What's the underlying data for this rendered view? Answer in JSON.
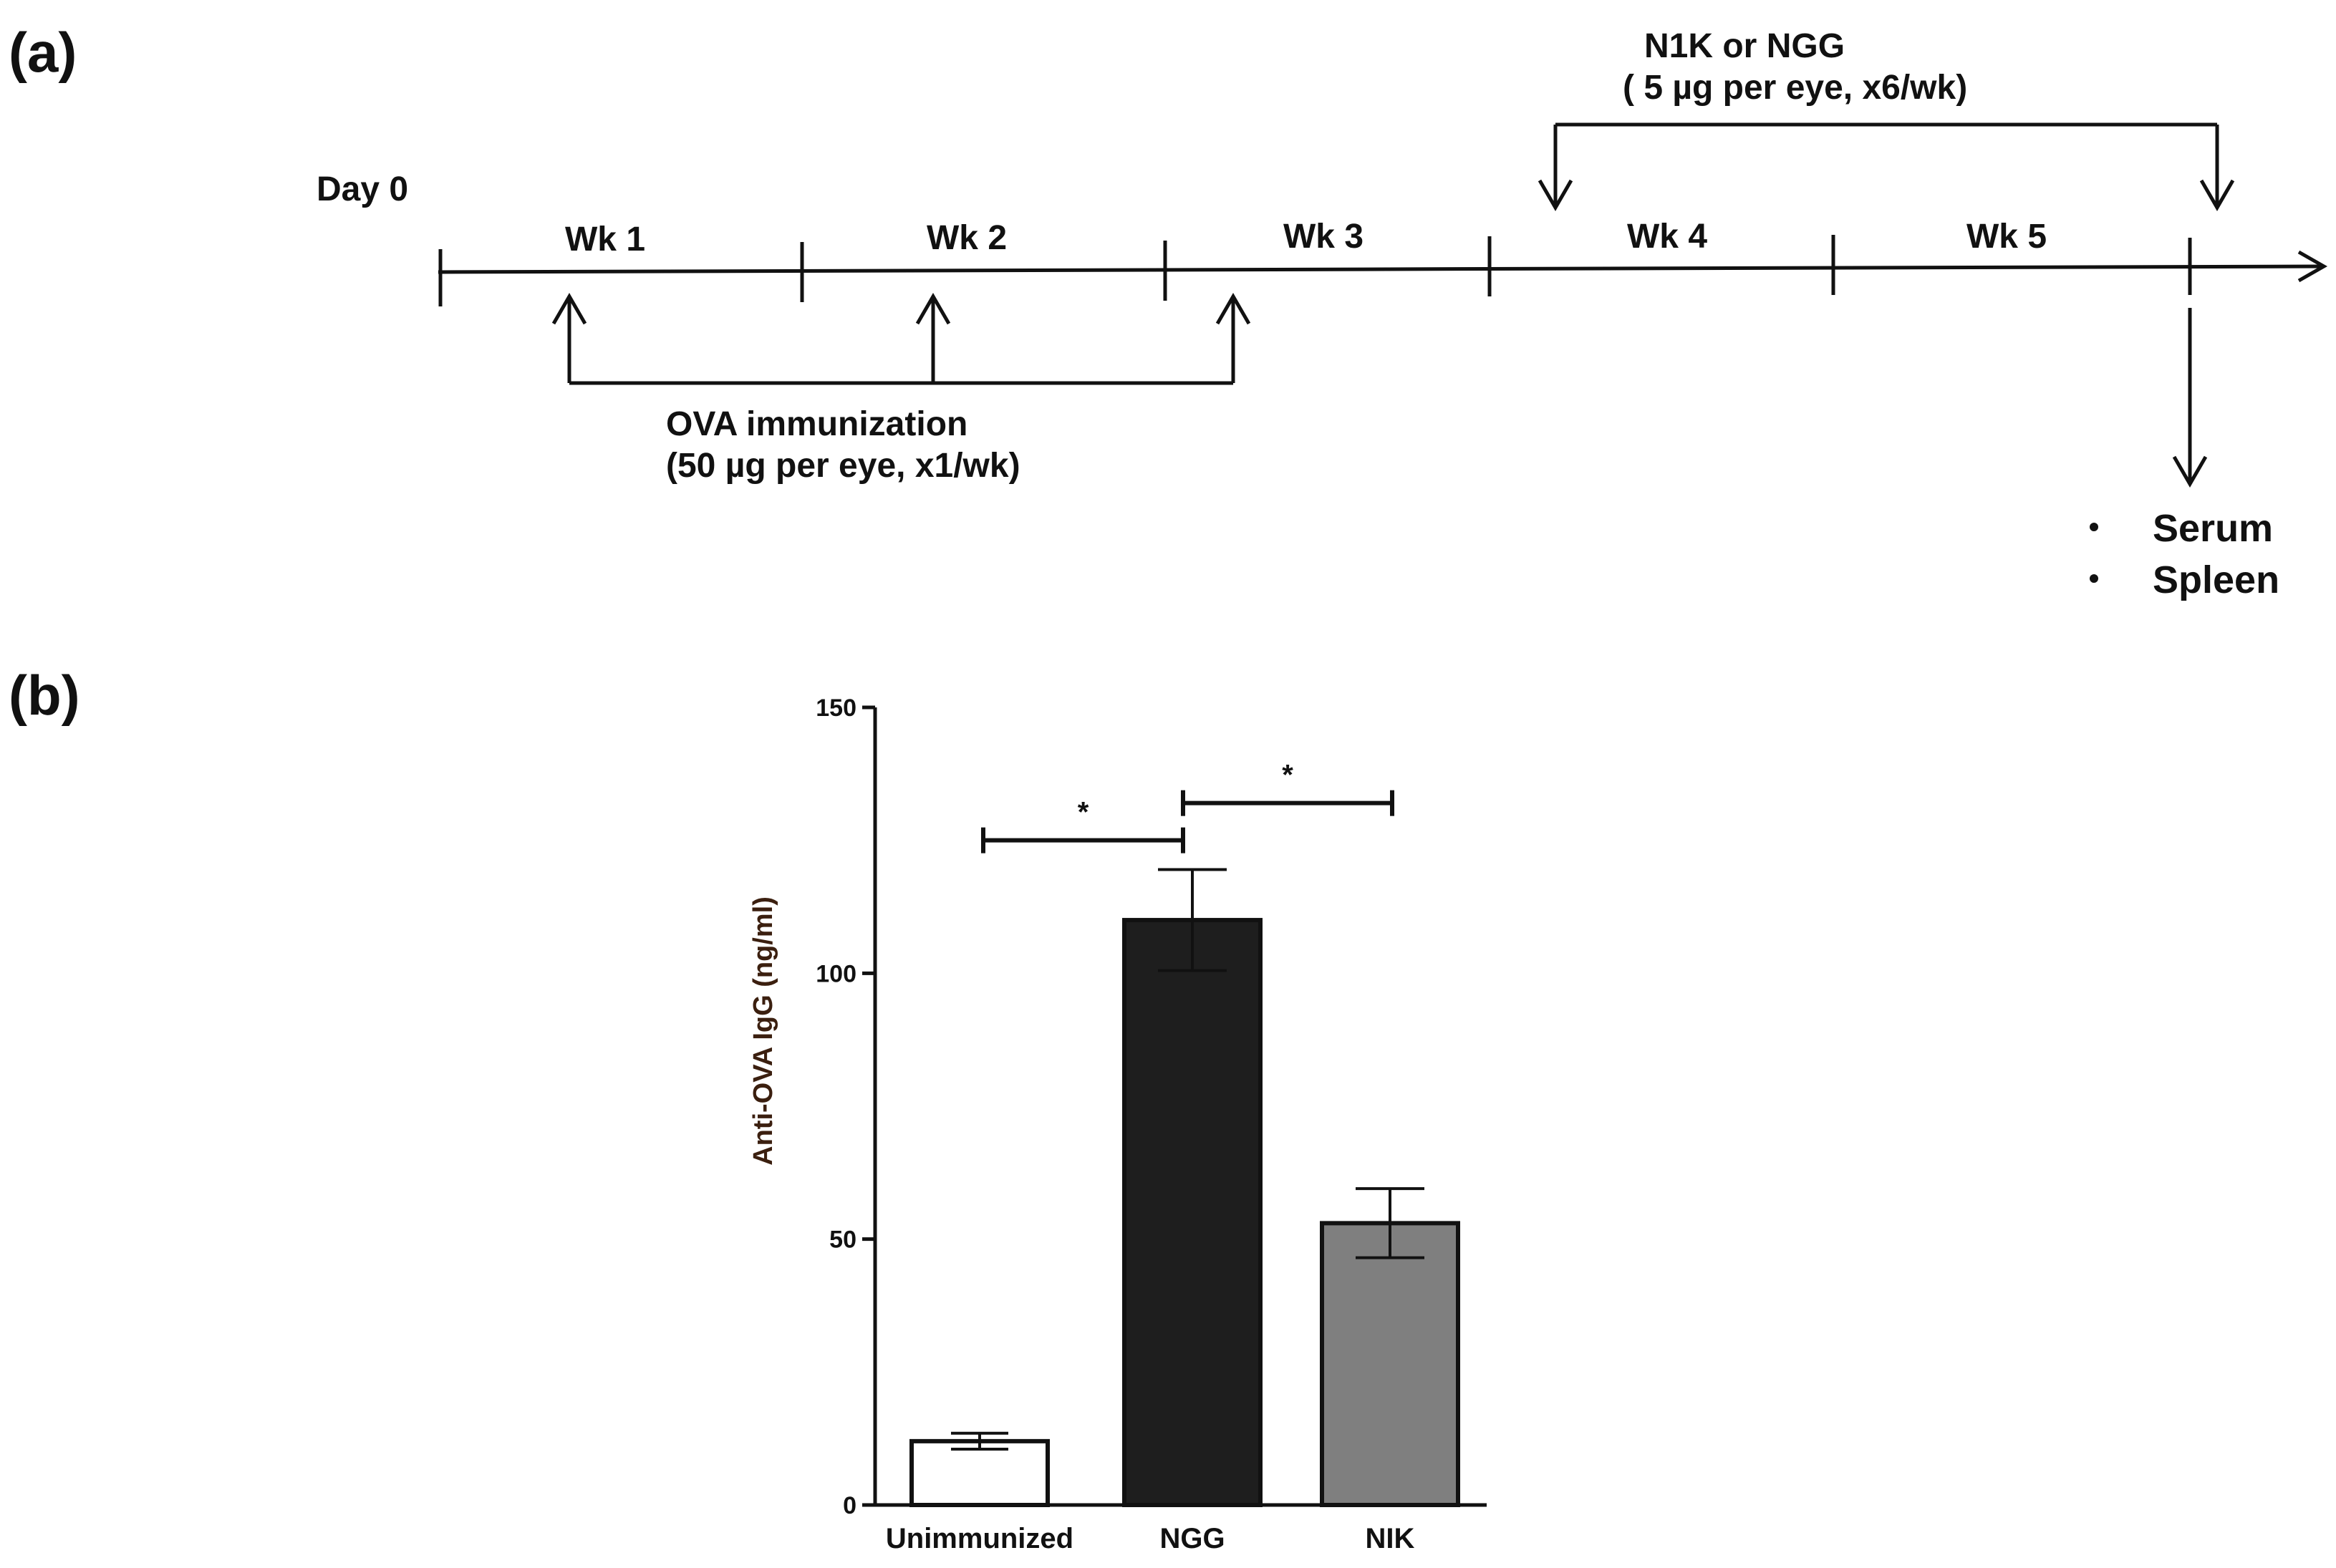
{
  "panel_a": {
    "label": "(a)",
    "day0": "Day 0",
    "weeks": [
      "Wk 1",
      "Wk 2",
      "Wk 3",
      "Wk 4",
      "Wk 5"
    ],
    "treatment_line1": "N1K or   NGG",
    "treatment_line2": "( 5 µg per eye, x6/wk)",
    "immunization_line1": "OVA immunization",
    "immunization_line2": "(50 µg per eye, x1/wk)",
    "outputs": [
      "Serum",
      "Spleen"
    ]
  },
  "panel_b": {
    "label": "(b)"
  },
  "chart_data": {
    "type": "bar",
    "categories": [
      "Unimmunized",
      "NGG",
      "NIK"
    ],
    "values": [
      12,
      110,
      53
    ],
    "error": [
      1.5,
      9.5,
      6.5
    ],
    "bar_colors": [
      "#ffffff",
      "#1e1e1e",
      "#7f7f7f"
    ],
    "ylabel": "Anti-OVA IgG (ng/ml)",
    "xlabel": "",
    "ylim": [
      0,
      150
    ],
    "yticks": [
      "0",
      "50",
      "100",
      "150"
    ],
    "ytick_values": [
      0,
      50,
      100,
      150
    ],
    "significance": [
      {
        "from": 0,
        "to": 1,
        "label": "*",
        "level": 125
      },
      {
        "from": 1,
        "to": 2,
        "label": "*",
        "level": 132
      }
    ]
  }
}
